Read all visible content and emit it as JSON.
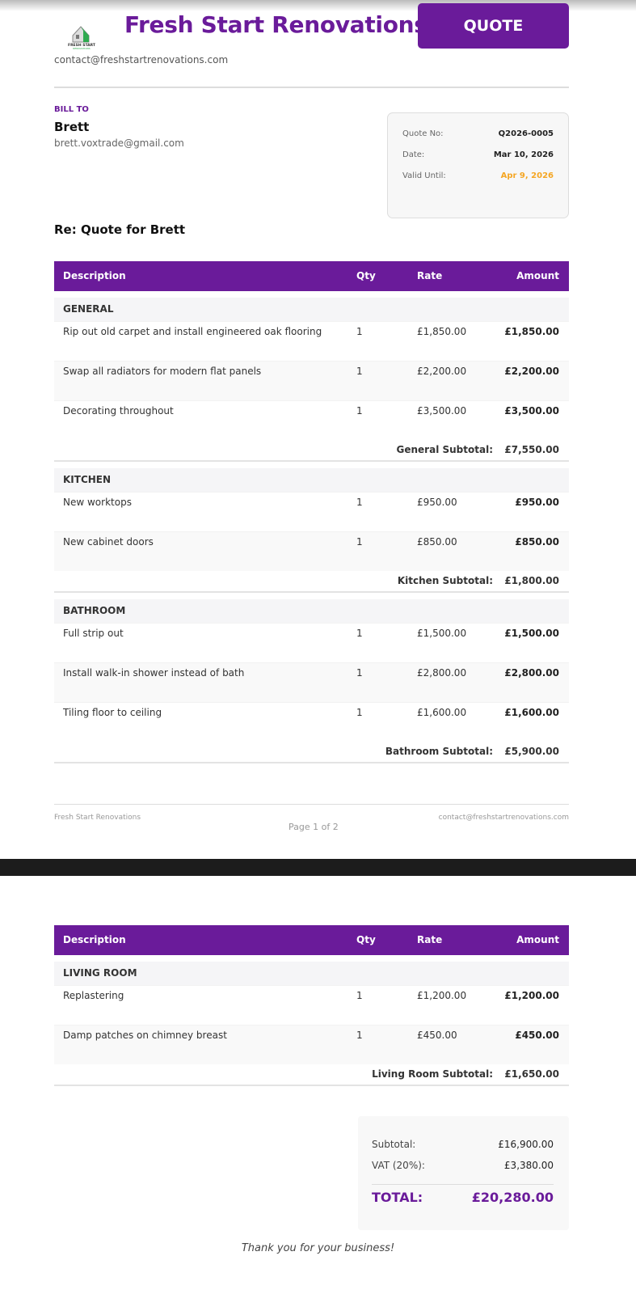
{
  "company": {
    "name": "Fresh Start Renovations",
    "logo_text": "FRESH START RENOVATIONS",
    "email": "contact@freshstartrenovations.com"
  },
  "doc_type": "QUOTE",
  "bill_to": {
    "label": "BILL TO",
    "name": "Brett",
    "email": "brett.voxtrade@gmail.com"
  },
  "info": [
    {
      "label": "Quote No:",
      "value": "Q2026-0005"
    },
    {
      "label": "Date:",
      "value": "Mar 10, 2026"
    },
    {
      "label": "Valid Until:",
      "value": "Apr 9, 2026",
      "color": "#f5a623"
    }
  ],
  "subject": "Re: Quote for Brett",
  "columns": [
    "Description",
    "Qty",
    "Rate",
    "Amount"
  ],
  "pages": [
    {
      "sections": [
        {
          "name": "GENERAL",
          "items": [
            [
              "Rip out old carpet and install engineered oak flooring",
              "1",
              "£1,850.00",
              "£1,850.00"
            ],
            [
              "Swap all radiators for modern flat panels",
              "1",
              "£2,200.00",
              "£2,200.00"
            ],
            [
              "Decorating throughout",
              "1",
              "£3,500.00",
              "£3,500.00"
            ]
          ],
          "subtotal_label": "General Subtotal:",
          "subtotal": "£7,550.00"
        },
        {
          "name": "KITCHEN",
          "items": [
            [
              "New worktops",
              "1",
              "£950.00",
              "£950.00"
            ],
            [
              "New cabinet doors",
              "1",
              "£850.00",
              "£850.00"
            ]
          ],
          "subtotal_label": "Kitchen Subtotal:",
          "subtotal": "£1,800.00"
        },
        {
          "name": "BATHROOM",
          "items": [
            [
              "Full strip out",
              "1",
              "£1,500.00",
              "£1,500.00"
            ],
            [
              "Install walk-in shower instead of bath",
              "1",
              "£2,800.00",
              "£2,800.00"
            ],
            [
              "Tiling floor to ceiling",
              "1",
              "£1,600.00",
              "£1,600.00"
            ]
          ],
          "subtotal_label": "Bathroom Subtotal:",
          "subtotal": "£5,900.00"
        }
      ]
    },
    {
      "sections": [
        {
          "name": "LIVING ROOM",
          "items": [
            [
              "Replastering",
              "1",
              "£1,200.00",
              "£1,200.00"
            ],
            [
              "Damp patches on chimney breast",
              "1",
              "£450.00",
              "£450.00"
            ]
          ],
          "subtotal_label": "Living Room Subtotal:",
          "subtotal": "£1,650.00"
        }
      ]
    }
  ],
  "footer": {
    "left": "Fresh Start Renovations",
    "center": "Page 1 of 2",
    "right": "contact@freshstartrenovations.com"
  },
  "totals": {
    "subtotal_label": "Subtotal:",
    "subtotal": "£16,900.00",
    "vat_label": "VAT (20%):",
    "vat": "£3,380.00",
    "total_label": "TOTAL:",
    "total": "£20,280.00"
  },
  "thanks": "Thank you for your business!",
  "colors": {
    "accent": "#6a1b9a",
    "logo_green": "#2eaa4f",
    "highlight": "#f5a623"
  }
}
